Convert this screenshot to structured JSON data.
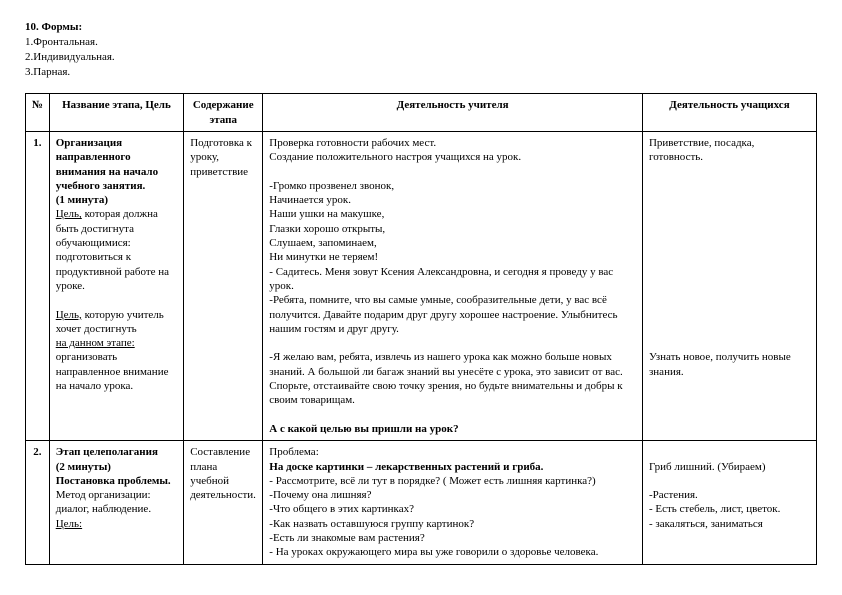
{
  "forms_header": "10. Формы:",
  "forms": [
    "1.Фронтальная.",
    "2.Индивидуальная.",
    "3.Парная."
  ],
  "headers": {
    "num": "№",
    "stage": "Название этапа, Цель",
    "content": "Содержание этапа",
    "teacher": "Деятельность учителя",
    "student": "Деятельность учащихся"
  },
  "row1": {
    "num": "1.",
    "stage_title": "Организация направленного внимания на начало учебного занятия.",
    "stage_duration": "(1 минута)",
    "goal1_label": "Цель,",
    "goal1_text": " которая должна быть достигнута обучающимися: подготовиться к продуктивной работе на уроке.",
    "goal2_label": "Цель,",
    "goal2_text": " которую учитель хочет достигнуть",
    "goal2_label2": "на данном этапе:",
    "goal2_text2": " организовать направленное внимание на начало урока.",
    "content": "Подготовка к уроку, приветствие",
    "t_line1": "Проверка готовности рабочих мест.",
    "t_line2": "Создание положительного настроя учащихся на урок.",
    "t_poem1": "  -Громко прозвенел звонок,",
    "t_poem2": "Начинается урок.",
    "t_poem3": "Наши ушки на макушке,",
    "t_poem4": "Глазки хорошо открыты,",
    "t_poem5": "Слушаем, запоминаем,",
    "t_poem6": "Ни минутки не теряем!",
    "t_sit": "- Садитесь. Меня зовут Ксения Александровна, и сегодня я проведу у вас урок.",
    "t_kids": "-Ребята, помните, что вы самые умные, сообразительные дети, у вас всё получится. Давайте подарим друг другу хорошее настроение. Улыбнитесь нашим гостям и друг другу.",
    "t_wish": "-Я желаю вам, ребята, извлечь из нашего урока как можно больше новых знаний. А большой ли багаж знаний вы унесёте с урока, это зависит от вас. Спорьте, отстаивайте свою точку зрения, но будьте внимательны и добры к своим товарищам.",
    "t_q": "А с какой целью вы пришли на урок?",
    "s_line1": "Приветствие, посадка, готовность.",
    "s_line2": "Узнать новое, получить новые знания."
  },
  "row2": {
    "num": "2.",
    "stage_title": "Этап целеполагания",
    "stage_duration": "(2 минуты)",
    "stage_sub": "Постановка проблемы.",
    "method": "Метод организации: диалог, наблюдение.",
    "goal_label": "Цель:",
    "content": "Составление плана учебной деятельности.",
    "t_line1": "Проблема:",
    "t_line2": "На доске картинки – лекарственных растений и гриба.",
    "t_line3": "- Рассмотрите,  всё ли тут в порядке? ( Может есть лишняя картинка?)",
    "t_line4": "-Почему она лишняя?",
    "t_line5": "-Что общего в этих картинках?",
    "t_line6": "-Как назвать оставшуюся группу картинок?",
    "t_line7": "-Есть ли знакомые вам растения?",
    "t_line8": "- На уроках окружающего мира вы уже говорили  о здоровье человека.",
    "s_line1": "Гриб лишний. (Убираем)",
    "s_line2": "-Растения.",
    "s_line3": "- Есть стебель, лист, цветок.",
    "s_line4": "- закаляться, заниматься"
  }
}
